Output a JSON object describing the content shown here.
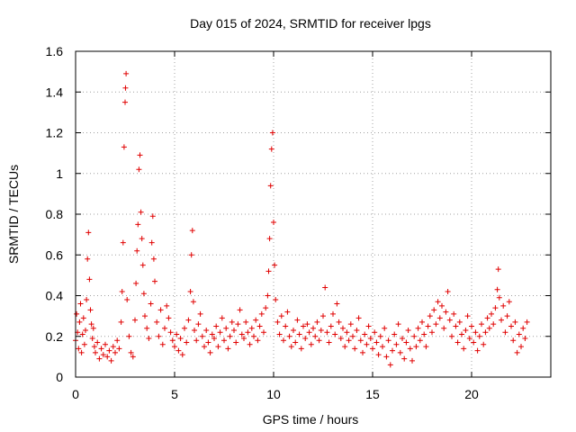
{
  "chart_data": {
    "type": "scatter",
    "title": "Day 015 of 2024, SRMTID for receiver lpgs",
    "xlabel": "GPS time / hours",
    "ylabel": "SRMTID / TECUs",
    "xlim": [
      0,
      24
    ],
    "ylim": [
      0,
      1.6
    ],
    "xticks": [
      0,
      5,
      10,
      15,
      20
    ],
    "xtick_labels": [
      "0",
      "5",
      "10",
      "15",
      "20"
    ],
    "yticks": [
      0,
      0.2,
      0.4,
      0.6,
      0.8,
      1.0,
      1.2,
      1.4,
      1.6
    ],
    "ytick_labels": [
      "0",
      "0.2",
      "0.4",
      "0.6",
      "0.8",
      "1",
      "1.2",
      "1.4",
      "1.6"
    ],
    "grid": true,
    "marker": "plus",
    "color": "#e00000",
    "series": [
      {
        "name": "SRMTID",
        "points": [
          [
            0.0,
            0.18
          ],
          [
            0.05,
            0.31
          ],
          [
            0.1,
            0.22
          ],
          [
            0.15,
            0.14
          ],
          [
            0.2,
            0.27
          ],
          [
            0.25,
            0.36
          ],
          [
            0.3,
            0.12
          ],
          [
            0.35,
            0.21
          ],
          [
            0.4,
            0.29
          ],
          [
            0.45,
            0.16
          ],
          [
            0.5,
            0.23
          ],
          [
            0.55,
            0.38
          ],
          [
            0.6,
            0.58
          ],
          [
            0.65,
            0.71
          ],
          [
            0.7,
            0.48
          ],
          [
            0.75,
            0.33
          ],
          [
            0.8,
            0.26
          ],
          [
            0.85,
            0.19
          ],
          [
            0.9,
            0.24
          ],
          [
            0.95,
            0.15
          ],
          [
            1.0,
            0.12
          ],
          [
            1.1,
            0.17
          ],
          [
            1.2,
            0.09
          ],
          [
            1.3,
            0.14
          ],
          [
            1.4,
            0.11
          ],
          [
            1.5,
            0.16
          ],
          [
            1.6,
            0.1
          ],
          [
            1.7,
            0.13
          ],
          [
            1.8,
            0.08
          ],
          [
            1.9,
            0.15
          ],
          [
            2.0,
            0.12
          ],
          [
            2.1,
            0.18
          ],
          [
            2.2,
            0.14
          ],
          [
            2.3,
            0.27
          ],
          [
            2.35,
            0.42
          ],
          [
            2.4,
            0.66
          ],
          [
            2.45,
            1.13
          ],
          [
            2.5,
            1.35
          ],
          [
            2.52,
            1.42
          ],
          [
            2.55,
            1.49
          ],
          [
            2.6,
            0.38
          ],
          [
            2.7,
            0.2
          ],
          [
            2.8,
            0.12
          ],
          [
            2.9,
            0.1
          ],
          [
            3.0,
            0.28
          ],
          [
            3.05,
            0.46
          ],
          [
            3.1,
            0.62
          ],
          [
            3.15,
            0.75
          ],
          [
            3.2,
            1.02
          ],
          [
            3.25,
            1.09
          ],
          [
            3.3,
            0.81
          ],
          [
            3.35,
            0.68
          ],
          [
            3.4,
            0.55
          ],
          [
            3.45,
            0.41
          ],
          [
            3.5,
            0.3
          ],
          [
            3.6,
            0.24
          ],
          [
            3.7,
            0.19
          ],
          [
            3.8,
            0.36
          ],
          [
            3.85,
            0.66
          ],
          [
            3.9,
            0.79
          ],
          [
            3.95,
            0.58
          ],
          [
            4.0,
            0.47
          ],
          [
            4.1,
            0.27
          ],
          [
            4.2,
            0.2
          ],
          [
            4.3,
            0.33
          ],
          [
            4.4,
            0.16
          ],
          [
            4.5,
            0.24
          ],
          [
            4.6,
            0.35
          ],
          [
            4.7,
            0.29
          ],
          [
            4.8,
            0.22
          ],
          [
            4.9,
            0.18
          ],
          [
            5.0,
            0.15
          ],
          [
            5.1,
            0.21
          ],
          [
            5.2,
            0.13
          ],
          [
            5.3,
            0.19
          ],
          [
            5.4,
            0.11
          ],
          [
            5.5,
            0.24
          ],
          [
            5.6,
            0.17
          ],
          [
            5.7,
            0.28
          ],
          [
            5.8,
            0.42
          ],
          [
            5.85,
            0.6
          ],
          [
            5.9,
            0.72
          ],
          [
            5.95,
            0.37
          ],
          [
            6.0,
            0.23
          ],
          [
            6.1,
            0.18
          ],
          [
            6.2,
            0.26
          ],
          [
            6.3,
            0.31
          ],
          [
            6.4,
            0.2
          ],
          [
            6.5,
            0.15
          ],
          [
            6.6,
            0.23
          ],
          [
            6.7,
            0.17
          ],
          [
            6.8,
            0.12
          ],
          [
            6.9,
            0.21
          ],
          [
            7.0,
            0.19
          ],
          [
            7.1,
            0.25
          ],
          [
            7.2,
            0.15
          ],
          [
            7.3,
            0.22
          ],
          [
            7.4,
            0.29
          ],
          [
            7.5,
            0.18
          ],
          [
            7.6,
            0.24
          ],
          [
            7.7,
            0.14
          ],
          [
            7.8,
            0.2
          ],
          [
            7.9,
            0.27
          ],
          [
            8.0,
            0.23
          ],
          [
            8.1,
            0.17
          ],
          [
            8.2,
            0.26
          ],
          [
            8.3,
            0.33
          ],
          [
            8.4,
            0.21
          ],
          [
            8.5,
            0.19
          ],
          [
            8.6,
            0.27
          ],
          [
            8.7,
            0.22
          ],
          [
            8.8,
            0.16
          ],
          [
            8.9,
            0.24
          ],
          [
            9.0,
            0.2
          ],
          [
            9.1,
            0.28
          ],
          [
            9.2,
            0.18
          ],
          [
            9.3,
            0.25
          ],
          [
            9.4,
            0.31
          ],
          [
            9.5,
            0.22
          ],
          [
            9.6,
            0.34
          ],
          [
            9.7,
            0.4
          ],
          [
            9.75,
            0.52
          ],
          [
            9.8,
            0.68
          ],
          [
            9.85,
            0.94
          ],
          [
            9.9,
            1.12
          ],
          [
            9.95,
            1.2
          ],
          [
            10.0,
            0.76
          ],
          [
            10.05,
            0.55
          ],
          [
            10.1,
            0.38
          ],
          [
            10.2,
            0.27
          ],
          [
            10.3,
            0.21
          ],
          [
            10.4,
            0.3
          ],
          [
            10.5,
            0.18
          ],
          [
            10.6,
            0.25
          ],
          [
            10.7,
            0.32
          ],
          [
            10.8,
            0.2
          ],
          [
            10.9,
            0.15
          ],
          [
            11.0,
            0.23
          ],
          [
            11.1,
            0.17
          ],
          [
            11.2,
            0.28
          ],
          [
            11.3,
            0.21
          ],
          [
            11.4,
            0.14
          ],
          [
            11.5,
            0.25
          ],
          [
            11.6,
            0.19
          ],
          [
            11.7,
            0.26
          ],
          [
            11.8,
            0.22
          ],
          [
            11.9,
            0.16
          ],
          [
            12.0,
            0.24
          ],
          [
            12.1,
            0.2
          ],
          [
            12.2,
            0.27
          ],
          [
            12.3,
            0.18
          ],
          [
            12.4,
            0.23
          ],
          [
            12.5,
            0.3
          ],
          [
            12.6,
            0.44
          ],
          [
            12.7,
            0.22
          ],
          [
            12.8,
            0.17
          ],
          [
            12.9,
            0.25
          ],
          [
            13.0,
            0.31
          ],
          [
            13.1,
            0.21
          ],
          [
            13.2,
            0.36
          ],
          [
            13.3,
            0.27
          ],
          [
            13.4,
            0.19
          ],
          [
            13.5,
            0.24
          ],
          [
            13.6,
            0.15
          ],
          [
            13.7,
            0.22
          ],
          [
            13.8,
            0.18
          ],
          [
            13.9,
            0.26
          ],
          [
            14.0,
            0.2
          ],
          [
            14.1,
            0.14
          ],
          [
            14.2,
            0.23
          ],
          [
            14.3,
            0.29
          ],
          [
            14.4,
            0.18
          ],
          [
            14.5,
            0.12
          ],
          [
            14.6,
            0.21
          ],
          [
            14.7,
            0.16
          ],
          [
            14.8,
            0.25
          ],
          [
            14.9,
            0.19
          ],
          [
            15.0,
            0.14
          ],
          [
            15.1,
            0.22
          ],
          [
            15.2,
            0.17
          ],
          [
            15.3,
            0.11
          ],
          [
            15.4,
            0.2
          ],
          [
            15.5,
            0.15
          ],
          [
            15.6,
            0.24
          ],
          [
            15.7,
            0.1
          ],
          [
            15.8,
            0.18
          ],
          [
            15.9,
            0.06
          ],
          [
            16.0,
            0.13
          ],
          [
            16.1,
            0.21
          ],
          [
            16.2,
            0.16
          ],
          [
            16.3,
            0.26
          ],
          [
            16.4,
            0.12
          ],
          [
            16.5,
            0.19
          ],
          [
            16.6,
            0.09
          ],
          [
            16.7,
            0.17
          ],
          [
            16.8,
            0.23
          ],
          [
            16.9,
            0.14
          ],
          [
            17.0,
            0.08
          ],
          [
            17.1,
            0.2
          ],
          [
            17.2,
            0.15
          ],
          [
            17.3,
            0.24
          ],
          [
            17.4,
            0.18
          ],
          [
            17.5,
            0.27
          ],
          [
            17.6,
            0.21
          ],
          [
            17.7,
            0.15
          ],
          [
            17.8,
            0.25
          ],
          [
            17.9,
            0.3
          ],
          [
            18.0,
            0.22
          ],
          [
            18.1,
            0.33
          ],
          [
            18.2,
            0.26
          ],
          [
            18.3,
            0.37
          ],
          [
            18.4,
            0.29
          ],
          [
            18.5,
            0.35
          ],
          [
            18.6,
            0.24
          ],
          [
            18.7,
            0.32
          ],
          [
            18.8,
            0.42
          ],
          [
            18.9,
            0.28
          ],
          [
            19.0,
            0.2
          ],
          [
            19.1,
            0.31
          ],
          [
            19.2,
            0.25
          ],
          [
            19.3,
            0.17
          ],
          [
            19.4,
            0.27
          ],
          [
            19.5,
            0.21
          ],
          [
            19.6,
            0.14
          ],
          [
            19.7,
            0.23
          ],
          [
            19.8,
            0.3
          ],
          [
            19.9,
            0.19
          ],
          [
            20.0,
            0.25
          ],
          [
            20.1,
            0.17
          ],
          [
            20.2,
            0.22
          ],
          [
            20.3,
            0.13
          ],
          [
            20.4,
            0.2
          ],
          [
            20.5,
            0.26
          ],
          [
            20.6,
            0.16
          ],
          [
            20.7,
            0.22
          ],
          [
            20.8,
            0.29
          ],
          [
            20.9,
            0.24
          ],
          [
            21.0,
            0.31
          ],
          [
            21.1,
            0.26
          ],
          [
            21.2,
            0.34
          ],
          [
            21.3,
            0.43
          ],
          [
            21.35,
            0.53
          ],
          [
            21.4,
            0.39
          ],
          [
            21.5,
            0.28
          ],
          [
            21.6,
            0.35
          ],
          [
            21.7,
            0.22
          ],
          [
            21.8,
            0.3
          ],
          [
            21.9,
            0.37
          ],
          [
            22.0,
            0.25
          ],
          [
            22.1,
            0.18
          ],
          [
            22.2,
            0.27
          ],
          [
            22.3,
            0.12
          ],
          [
            22.4,
            0.21
          ],
          [
            22.5,
            0.15
          ],
          [
            22.6,
            0.24
          ],
          [
            22.7,
            0.19
          ],
          [
            22.8,
            0.27
          ]
        ]
      }
    ]
  }
}
